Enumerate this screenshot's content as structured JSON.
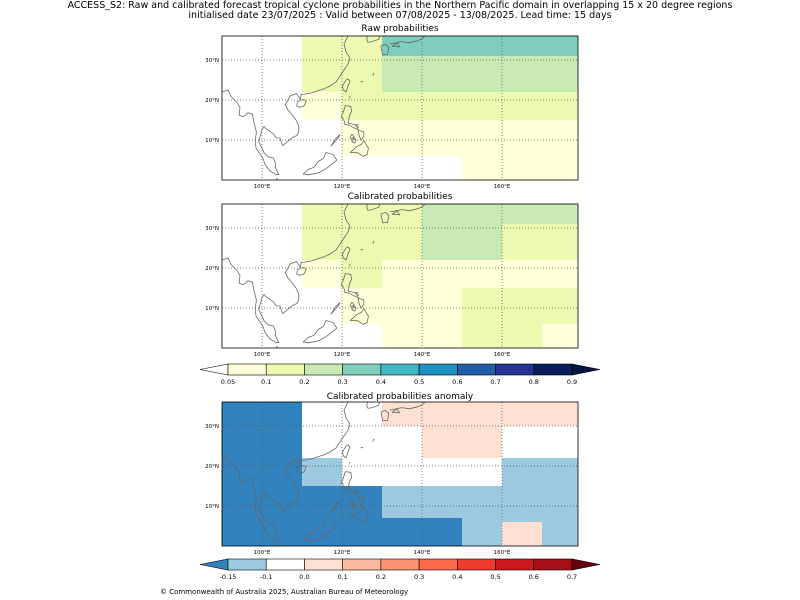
{
  "header": {
    "line1": "ACCESS_S2: Raw and calibrated forecast tropical cyclone probabilities in the Northern Pacific domain in overlapping 15 x 20 degree regions",
    "line2": "initialised date 23/07/2025 :  Valid between 07/08/2025 - 13/08/2025. Lead time: 15 days"
  },
  "panels": [
    {
      "title": "Raw probabilities"
    },
    {
      "title": "Calibrated probabilities"
    },
    {
      "title": "Calibrated probabilities anomaly"
    }
  ],
  "map_axes": {
    "lon_ticks": [
      {
        "value": 100,
        "label": "100°E"
      },
      {
        "value": 120,
        "label": "120°E"
      },
      {
        "value": 140,
        "label": "140°E"
      },
      {
        "value": 160,
        "label": "160°E"
      }
    ],
    "lat_ticks": [
      {
        "value": 10,
        "label": "10°N"
      },
      {
        "value": 20,
        "label": "20°N"
      },
      {
        "value": 30,
        "label": "30°N"
      }
    ],
    "lon_range": [
      90,
      179
    ],
    "lat_range": [
      0,
      36
    ],
    "gridlines": "dotted"
  },
  "colorbars": {
    "probability": {
      "ticks": [
        "0.05",
        "0.1",
        "0.2",
        "0.3",
        "0.4",
        "0.5",
        "0.6",
        "0.7",
        "0.8",
        "0.9"
      ],
      "colors": [
        "#ffffd9",
        "#edf8b1",
        "#c7e9b4",
        "#7fcdbb",
        "#41b6c4",
        "#1d91c0",
        "#225ea8",
        "#253494",
        "#081d58"
      ],
      "under_color": "#ffffff",
      "over_color": "#061440"
    },
    "anomaly": {
      "ticks": [
        "-0.15",
        "-0.1",
        "0.0",
        "0.1",
        "0.2",
        "0.3",
        "0.4",
        "0.5",
        "0.6",
        "0.7"
      ],
      "colors": [
        "#9ecae1",
        "#ffffff",
        "#fee0d2",
        "#fcbba1",
        "#fc9272",
        "#fb6a4a",
        "#ef3b2c",
        "#cb181d",
        "#a50f15"
      ],
      "under_color": "#3182bd",
      "over_color": "#67000d"
    }
  },
  "raw_probabilities": {
    "cells": [
      {
        "lon": [
          110,
          130
        ],
        "lat": [
          30,
          36
        ],
        "value": 0.15
      },
      {
        "lon": [
          130,
          179
        ],
        "lat": [
          31,
          36
        ],
        "value": 0.35
      },
      {
        "lon": [
          110,
          130
        ],
        "lat": [
          22,
          30
        ],
        "value": 0.15
      },
      {
        "lon": [
          130,
          179
        ],
        "lat": [
          22,
          31
        ],
        "value": 0.25
      },
      {
        "lon": [
          110,
          120
        ],
        "lat": [
          15,
          22
        ],
        "value": 0.08
      },
      {
        "lon": [
          120,
          130
        ],
        "lat": [
          14,
          22
        ],
        "value": 0.12
      },
      {
        "lon": [
          130,
          179
        ],
        "lat": [
          15,
          22
        ],
        "value": 0.12
      },
      {
        "lon": [
          120,
          130
        ],
        "lat": [
          6,
          15
        ],
        "value": 0.08
      },
      {
        "lon": [
          130,
          179
        ],
        "lat": [
          6,
          15
        ],
        "value": 0.08
      },
      {
        "lon": [
          150,
          179
        ],
        "lat": [
          0,
          6
        ],
        "value": 0.08
      }
    ]
  },
  "calibrated_probabilities": {
    "cells": [
      {
        "lon": [
          110,
          140
        ],
        "lat": [
          22,
          36
        ],
        "value": 0.15
      },
      {
        "lon": [
          140,
          160
        ],
        "lat": [
          22,
          36
        ],
        "value": 0.25
      },
      {
        "lon": [
          160,
          179
        ],
        "lat": [
          31,
          36
        ],
        "value": 0.25
      },
      {
        "lon": [
          160,
          179
        ],
        "lat": [
          22,
          31
        ],
        "value": 0.15
      },
      {
        "lon": [
          110,
          120
        ],
        "lat": [
          15,
          22
        ],
        "value": 0.08
      },
      {
        "lon": [
          120,
          130
        ],
        "lat": [
          14,
          22
        ],
        "value": 0.12
      },
      {
        "lon": [
          130,
          179
        ],
        "lat": [
          15,
          22
        ],
        "value": 0.08
      },
      {
        "lon": [
          120,
          150
        ],
        "lat": [
          6,
          15
        ],
        "value": 0.08
      },
      {
        "lon": [
          150,
          179
        ],
        "lat": [
          6,
          15
        ],
        "value": 0.12
      },
      {
        "lon": [
          130,
          150
        ],
        "lat": [
          0,
          6
        ],
        "value": 0.08
      },
      {
        "lon": [
          150,
          170
        ],
        "lat": [
          0,
          6
        ],
        "value": 0.12
      },
      {
        "lon": [
          170,
          179
        ],
        "lat": [
          0,
          6
        ],
        "value": 0.08
      }
    ]
  },
  "calibrated_anomaly": {
    "cells": [
      {
        "lon": [
          90,
          110
        ],
        "lat": [
          0,
          36
        ],
        "value": -0.2
      },
      {
        "lon": [
          110,
          120
        ],
        "lat": [
          15,
          22
        ],
        "value": -0.12
      },
      {
        "lon": [
          110,
          130
        ],
        "lat": [
          0,
          15
        ],
        "value": -0.2
      },
      {
        "lon": [
          130,
          150
        ],
        "lat": [
          0,
          7
        ],
        "value": -0.2
      },
      {
        "lon": [
          130,
          150
        ],
        "lat": [
          7,
          15
        ],
        "value": -0.12
      },
      {
        "lon": [
          150,
          160
        ],
        "lat": [
          0,
          15
        ],
        "value": -0.12
      },
      {
        "lon": [
          130,
          140
        ],
        "lat": [
          30,
          36
        ],
        "value": 0.05
      },
      {
        "lon": [
          140,
          179
        ],
        "lat": [
          30,
          36
        ],
        "value": 0.05
      },
      {
        "lon": [
          140,
          160
        ],
        "lat": [
          22,
          30
        ],
        "value": 0.05
      },
      {
        "lon": [
          160,
          179
        ],
        "lat": [
          0,
          22
        ],
        "value": -0.12
      },
      {
        "lon": [
          160,
          170
        ],
        "lat": [
          0,
          6
        ],
        "value": 0.0
      }
    ]
  },
  "footer": "© Commonwealth of Australia 2025, Australian Bureau of Meteorology"
}
